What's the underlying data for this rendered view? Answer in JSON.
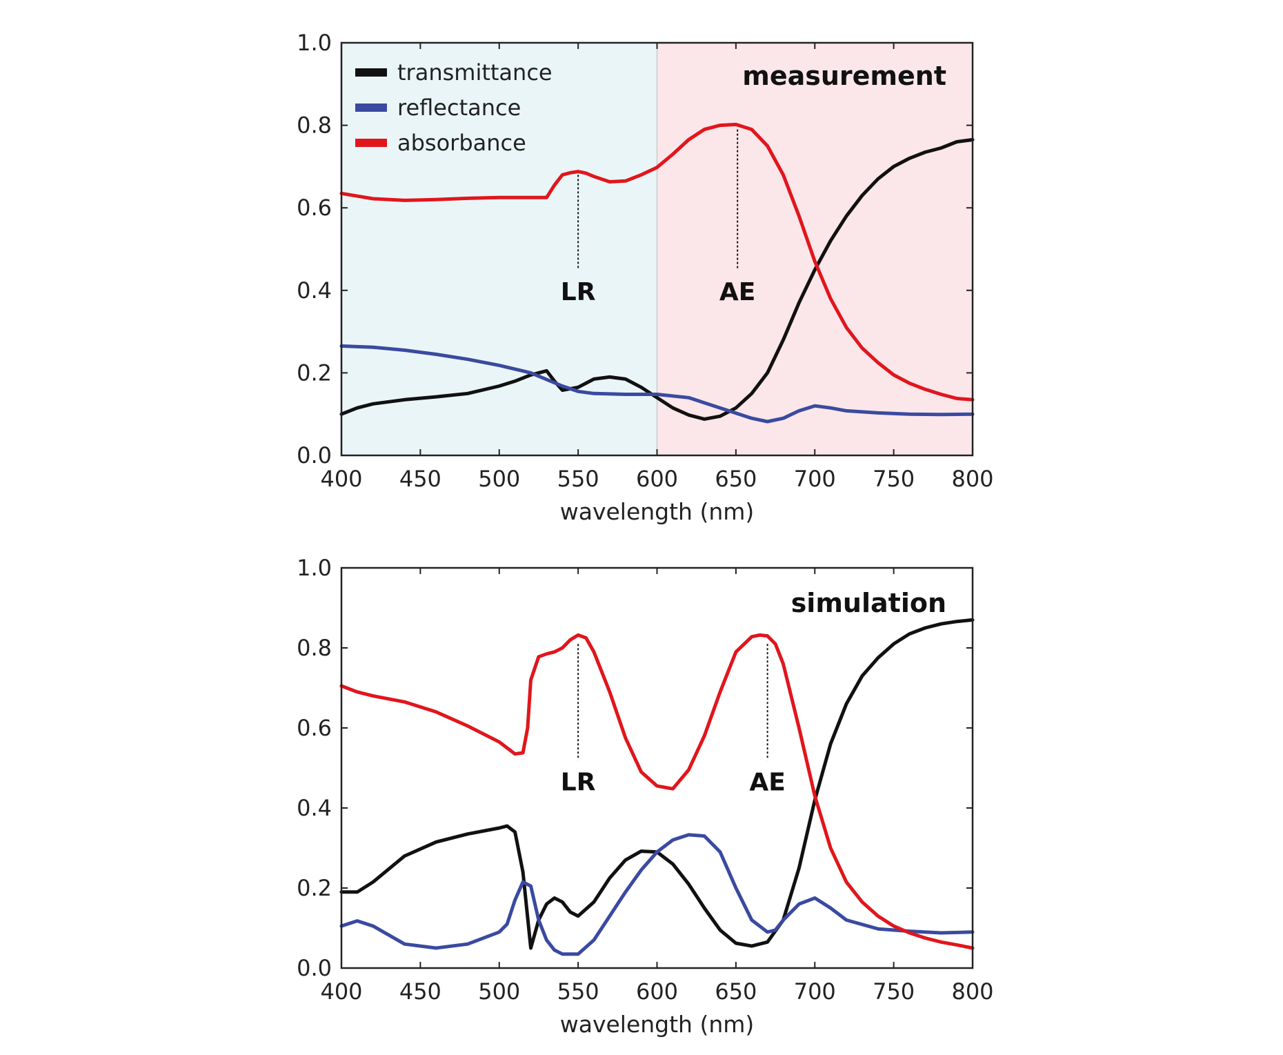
{
  "chart_data": [
    {
      "type": "line",
      "title": "measurement",
      "xlabel": "wavelength (nm)",
      "ylabel": "",
      "xlim": [
        400,
        800
      ],
      "ylim": [
        0.0,
        1.0
      ],
      "xticks": [
        "400",
        "450",
        "500",
        "550",
        "600",
        "650",
        "700",
        "750",
        "800"
      ],
      "yticks": [
        "0.0",
        "0.2",
        "0.4",
        "0.6",
        "0.8",
        "1.0"
      ],
      "grid": false,
      "legend_position": "top-left",
      "shaded_regions": [
        {
          "x": [
            400,
            600
          ],
          "color": "#eaf5f8"
        },
        {
          "x": [
            600,
            800
          ],
          "color": "#fbe6ea"
        }
      ],
      "annotations": [
        {
          "label": "LR",
          "x": 550,
          "y_top": 0.68,
          "y_bottom": 0.45
        },
        {
          "label": "AE",
          "x": 651,
          "y_top": 0.79,
          "y_bottom": 0.45
        }
      ],
      "series": [
        {
          "name": "transmittance",
          "color": "#111111",
          "x": [
            400,
            410,
            420,
            440,
            460,
            480,
            500,
            510,
            520,
            530,
            535,
            540,
            550,
            560,
            570,
            580,
            590,
            600,
            610,
            620,
            630,
            640,
            650,
            660,
            670,
            680,
            690,
            700,
            710,
            720,
            730,
            740,
            750,
            760,
            770,
            780,
            790,
            800
          ],
          "y": [
            0.1,
            0.115,
            0.125,
            0.135,
            0.142,
            0.15,
            0.168,
            0.18,
            0.195,
            0.205,
            0.18,
            0.158,
            0.165,
            0.185,
            0.19,
            0.185,
            0.165,
            0.14,
            0.115,
            0.098,
            0.088,
            0.095,
            0.115,
            0.15,
            0.2,
            0.28,
            0.37,
            0.45,
            0.52,
            0.58,
            0.63,
            0.67,
            0.7,
            0.72,
            0.735,
            0.745,
            0.76,
            0.765
          ]
        },
        {
          "name": "reflectance",
          "color": "#3a4aa0",
          "x": [
            400,
            420,
            440,
            460,
            480,
            500,
            520,
            540,
            550,
            560,
            580,
            600,
            620,
            640,
            660,
            670,
            680,
            690,
            700,
            710,
            720,
            740,
            760,
            780,
            800
          ],
          "y": [
            0.265,
            0.262,
            0.255,
            0.245,
            0.233,
            0.218,
            0.2,
            0.168,
            0.155,
            0.15,
            0.148,
            0.148,
            0.14,
            0.115,
            0.09,
            0.082,
            0.09,
            0.108,
            0.12,
            0.115,
            0.108,
            0.103,
            0.1,
            0.099,
            0.1
          ]
        },
        {
          "name": "absorbance",
          "color": "#e0161c",
          "x": [
            400,
            420,
            440,
            460,
            480,
            500,
            520,
            530,
            535,
            540,
            545,
            550,
            555,
            560,
            570,
            580,
            590,
            600,
            610,
            620,
            630,
            640,
            650,
            660,
            670,
            680,
            690,
            700,
            710,
            720,
            730,
            740,
            750,
            760,
            770,
            780,
            790,
            800
          ],
          "y": [
            0.635,
            0.622,
            0.618,
            0.62,
            0.623,
            0.625,
            0.625,
            0.625,
            0.655,
            0.68,
            0.685,
            0.688,
            0.684,
            0.676,
            0.663,
            0.665,
            0.68,
            0.698,
            0.73,
            0.765,
            0.79,
            0.8,
            0.802,
            0.79,
            0.75,
            0.68,
            0.58,
            0.47,
            0.38,
            0.31,
            0.26,
            0.225,
            0.195,
            0.175,
            0.16,
            0.148,
            0.138,
            0.135
          ]
        }
      ]
    },
    {
      "type": "line",
      "title": "simulation",
      "xlabel": "wavelength (nm)",
      "ylabel": "",
      "xlim": [
        400,
        800
      ],
      "ylim": [
        0.0,
        1.0
      ],
      "xticks": [
        "400",
        "450",
        "500",
        "550",
        "600",
        "650",
        "700",
        "750",
        "800"
      ],
      "yticks": [
        "0.0",
        "0.2",
        "0.4",
        "0.6",
        "0.8",
        "1.0"
      ],
      "grid": false,
      "annotations": [
        {
          "label": "LR",
          "x": 550,
          "y_top": 0.81,
          "y_bottom": 0.52
        },
        {
          "label": "AE",
          "x": 670,
          "y_top": 0.81,
          "y_bottom": 0.52
        }
      ],
      "series": [
        {
          "name": "transmittance",
          "color": "#111111",
          "x": [
            400,
            410,
            420,
            440,
            460,
            480,
            500,
            505,
            510,
            515,
            520,
            525,
            530,
            535,
            540,
            545,
            550,
            560,
            570,
            580,
            590,
            600,
            610,
            620,
            630,
            640,
            650,
            660,
            670,
            680,
            690,
            700,
            710,
            720,
            730,
            740,
            750,
            760,
            770,
            780,
            790,
            800
          ],
          "y": [
            0.19,
            0.19,
            0.215,
            0.28,
            0.315,
            0.335,
            0.35,
            0.355,
            0.34,
            0.24,
            0.05,
            0.12,
            0.16,
            0.175,
            0.165,
            0.14,
            0.13,
            0.165,
            0.225,
            0.27,
            0.292,
            0.29,
            0.26,
            0.21,
            0.15,
            0.095,
            0.062,
            0.055,
            0.065,
            0.12,
            0.25,
            0.42,
            0.56,
            0.66,
            0.73,
            0.775,
            0.81,
            0.835,
            0.85,
            0.86,
            0.866,
            0.87
          ]
        },
        {
          "name": "reflectance",
          "color": "#3a4aa0",
          "x": [
            400,
            410,
            420,
            440,
            460,
            480,
            500,
            505,
            510,
            515,
            520,
            525,
            530,
            535,
            540,
            550,
            560,
            570,
            580,
            590,
            600,
            610,
            620,
            630,
            640,
            650,
            660,
            670,
            675,
            680,
            690,
            700,
            710,
            720,
            740,
            760,
            780,
            800
          ],
          "y": [
            0.105,
            0.118,
            0.105,
            0.06,
            0.05,
            0.06,
            0.09,
            0.11,
            0.17,
            0.215,
            0.205,
            0.12,
            0.07,
            0.045,
            0.035,
            0.035,
            0.07,
            0.13,
            0.19,
            0.245,
            0.29,
            0.32,
            0.333,
            0.33,
            0.29,
            0.2,
            0.12,
            0.09,
            0.095,
            0.12,
            0.16,
            0.175,
            0.15,
            0.12,
            0.098,
            0.092,
            0.088,
            0.09
          ]
        },
        {
          "name": "absorbance",
          "color": "#e0161c",
          "x": [
            400,
            410,
            420,
            440,
            460,
            480,
            500,
            505,
            510,
            515,
            518,
            520,
            525,
            530,
            535,
            540,
            545,
            550,
            555,
            560,
            570,
            580,
            590,
            600,
            610,
            620,
            630,
            640,
            650,
            660,
            665,
            670,
            675,
            680,
            690,
            700,
            710,
            720,
            730,
            740,
            750,
            760,
            770,
            780,
            790,
            800
          ],
          "y": [
            0.705,
            0.69,
            0.68,
            0.665,
            0.64,
            0.605,
            0.565,
            0.55,
            0.535,
            0.538,
            0.6,
            0.72,
            0.778,
            0.785,
            0.79,
            0.8,
            0.82,
            0.832,
            0.825,
            0.79,
            0.69,
            0.575,
            0.49,
            0.455,
            0.448,
            0.495,
            0.58,
            0.69,
            0.79,
            0.828,
            0.832,
            0.83,
            0.81,
            0.76,
            0.6,
            0.43,
            0.3,
            0.215,
            0.165,
            0.13,
            0.105,
            0.088,
            0.075,
            0.065,
            0.058,
            0.05
          ]
        }
      ]
    }
  ]
}
